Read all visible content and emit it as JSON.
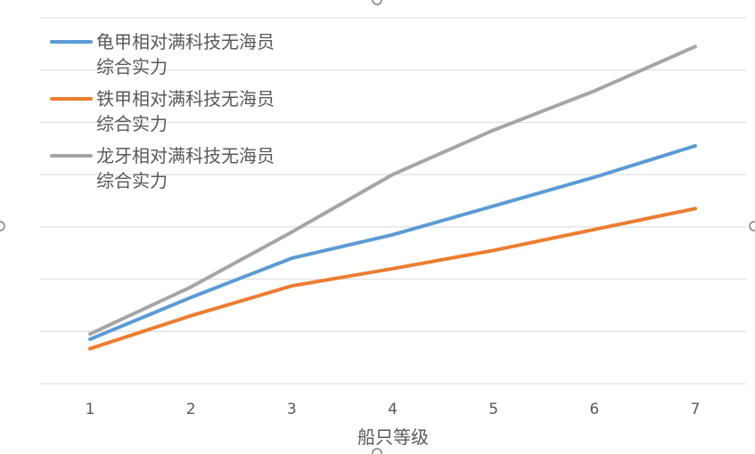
{
  "chart_data": {
    "type": "line",
    "title": "",
    "xlabel": "船只等级",
    "ylabel": "",
    "categories": [
      "1",
      "2",
      "3",
      "4",
      "5",
      "6",
      "7"
    ],
    "ylim": [
      0,
      7
    ],
    "grid": true,
    "legend_position": "top-left",
    "series": [
      {
        "name": "龟甲相对满科技无海员综合实力",
        "name_lines": [
          "龟甲相对满科技无海员",
          "综合实力"
        ],
        "color": "#5b9bd5",
        "values": [
          0.85,
          1.65,
          2.4,
          2.85,
          3.4,
          3.95,
          4.55
        ]
      },
      {
        "name": "铁甲相对满科技无海员综合实力",
        "name_lines": [
          "铁甲相对满科技无海员",
          "综合实力"
        ],
        "color": "#ed7d31",
        "values": [
          0.67,
          1.3,
          1.87,
          2.2,
          2.55,
          2.95,
          3.35
        ]
      },
      {
        "name": "龙牙相对满科技无海员综合实力",
        "name_lines": [
          "龙牙相对满科技无海员",
          "综合实力"
        ],
        "color": "#a5a5a5",
        "values": [
          0.95,
          1.85,
          2.9,
          4.0,
          4.85,
          5.6,
          6.45
        ]
      }
    ]
  }
}
